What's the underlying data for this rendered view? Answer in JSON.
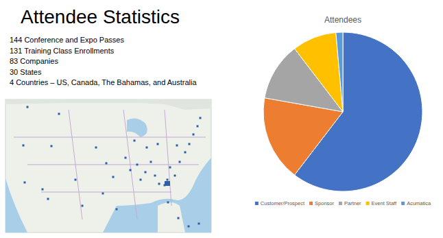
{
  "slide": {
    "title": "Attendee Statistics",
    "stats": [
      "144 Conference and Expo Passes",
      "131 Training Class Enrollments",
      "83 Companies",
      "30 States",
      "4 Countries – US, Canada, The Bahamas, and Australia"
    ]
  },
  "chart_data": {
    "type": "pie",
    "title": "Attendees",
    "categories": [
      "Customer/Prospect",
      "Sponsor",
      "Partner",
      "Event Staff",
      "Acumatica"
    ],
    "values": [
      60.4,
      17.4,
      11.8,
      9.0,
      1.4
    ],
    "colors": [
      "#4472c4",
      "#ed7d31",
      "#a5a5a5",
      "#ffc000",
      "#5b9bd5"
    ],
    "legend": "bottom"
  }
}
